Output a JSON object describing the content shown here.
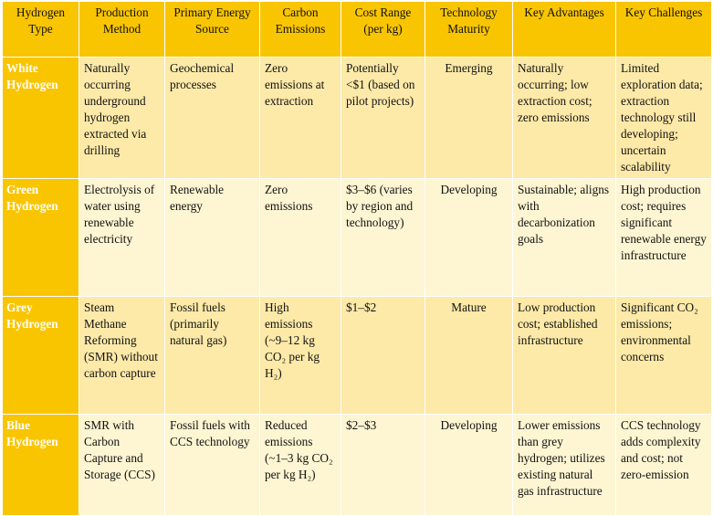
{
  "table": {
    "headers": [
      "Hydrogen Type",
      "Production Method",
      "Primary Energy Source",
      "Carbon Emissions",
      "Cost Range (per kg)",
      "Technology Maturity",
      "Key Advantages",
      "Key Challenges"
    ],
    "rows": [
      {
        "type": "White Hydrogen",
        "method": "Naturally occurring underground hydrogen extracted via drilling",
        "source": "Geochemical processes",
        "emissions": "Zero emissions at extraction",
        "cost": "Potentially <$1 (based on pilot projects)",
        "maturity": "Emerging",
        "advantages": "Naturally occurring; low extraction cost; zero emissions",
        "challenges": "Limited exploration data; extraction technology still developing; uncertain scalability"
      },
      {
        "type": "Green Hydrogen",
        "method": "Electrolysis of water using renewable electricity",
        "source": "Renewable energy",
        "emissions": "Zero emissions",
        "cost": "$3–$6 (varies by region and technology)",
        "maturity": "Developing",
        "advantages": "Sustainable; aligns with decarbonization goals",
        "challenges": "High production cost; requires significant renewable energy infrastructure"
      },
      {
        "type": "Grey Hydrogen",
        "method": "Steam Methane Reforming (SMR) without carbon capture",
        "source": "Fossil fuels (primarily natural gas)",
        "emissions": "High emissions (~9–12 kg CO₂ per kg H₂)",
        "cost": "$1–$2",
        "maturity": "Mature",
        "advantages": "Low production cost; established infrastructure",
        "challenges": "Significant CO₂ emissions; environmental concerns"
      },
      {
        "type": "Blue Hydrogen",
        "method": "SMR with Carbon Capture and Storage (CCS)",
        "source": "Fossil fuels with CCS technology",
        "emissions": "Reduced emissions (~1–3 kg CO₂ per kg H₂)",
        "cost": "$2–$3",
        "maturity": "Developing",
        "advantages": "Lower emissions than grey hydrogen; utilizes existing natural gas infrastructure",
        "challenges": "CCS technology adds complexity and cost; not zero-emission"
      }
    ]
  },
  "colors": {
    "header_bg": "#f9c500",
    "row_odd_bg": "#fde9a8",
    "row_even_bg": "#fef5d2",
    "type_text": "#ffffff"
  }
}
